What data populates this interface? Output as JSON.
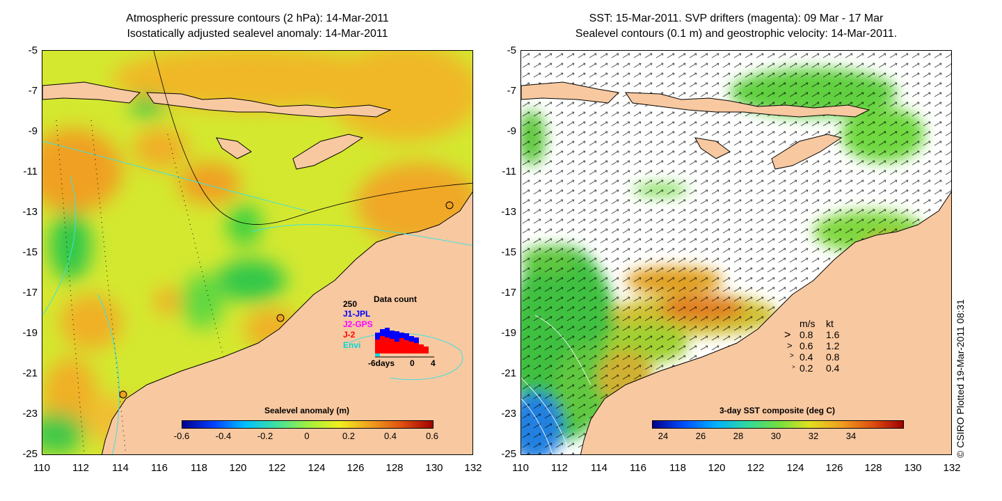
{
  "left_panel": {
    "title_line1": "Atmospheric pressure contours (2 hPa): 14-Mar-2011",
    "title_line2": "Isostatically adjusted sealevel anomaly: 14-Mar-2011",
    "y_ticks": [
      "-5",
      "-7",
      "-9",
      "-11",
      "-13",
      "-15",
      "-17",
      "-19",
      "-21",
      "-23",
      "-25"
    ],
    "x_ticks": [
      "110",
      "112",
      "114",
      "116",
      "118",
      "120",
      "122",
      "124",
      "126",
      "128",
      "130",
      "132"
    ],
    "colorbar": {
      "title": "Sealevel anomaly (m)",
      "labels": [
        "-0.6",
        "-0.4",
        "-0.2",
        "0",
        "0.2",
        "0.4",
        "0.6"
      ]
    },
    "data_count": {
      "title": "Data count",
      "max_label": "250",
      "missions": [
        {
          "name": "J1-JPL",
          "color": "#0000ff"
        },
        {
          "name": "J2-GPS",
          "color": "#ff00ff"
        },
        {
          "name": "J-2",
          "color": "#ff0000"
        },
        {
          "name": "Envi",
          "color": "#00e0e0"
        }
      ],
      "x_labels": [
        "-6days",
        "0",
        "4"
      ]
    },
    "colors": {
      "land": "#f8c8a0",
      "ocean_mid": "#c8e830",
      "ocean_warm": "#f0b020",
      "ocean_green": "#40d040"
    }
  },
  "right_panel": {
    "title_line1": "SST: 15-Mar-2011. SVP drifters (magenta): 09 Mar - 17 Mar",
    "title_line2": "Sealevel contours (0.1 m) and geostrophic velocity: 14-Mar-2011.",
    "y_ticks": [
      "-5",
      "-7",
      "-9",
      "-11",
      "-13",
      "-15",
      "-17",
      "-19",
      "-21",
      "-23",
      "-25"
    ],
    "x_ticks": [
      "110",
      "112",
      "114",
      "116",
      "118",
      "120",
      "122",
      "124",
      "126",
      "128",
      "130",
      "132"
    ],
    "colorbar": {
      "title": "3-day SST composite (deg C)",
      "labels": [
        "24",
        "26",
        "28",
        "30",
        "32",
        "34"
      ]
    },
    "velocity_legend": {
      "header_ms": "m/s",
      "header_kt": "kt",
      "rows": [
        {
          "ms": "0.8",
          "kt": "1.6"
        },
        {
          "ms": "0.6",
          "kt": "1.2"
        },
        {
          "ms": "0.4",
          "kt": "0.8"
        },
        {
          "ms": "0.2",
          "kt": "0.4"
        }
      ]
    }
  },
  "copyright": "© CSIRO Plotted 19-Mar-2011 08:31"
}
